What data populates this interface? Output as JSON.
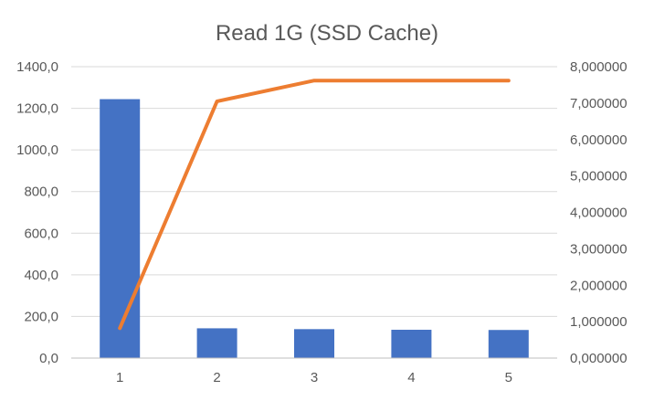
{
  "chart_data": {
    "type": "bar+line",
    "title": "Read 1G (SSD Cache)",
    "categories": [
      "1",
      "2",
      "3",
      "4",
      "5"
    ],
    "grid": true,
    "legend": "none",
    "y_left": {
      "lim": [
        0,
        1400
      ],
      "ticks": [
        "0,0",
        "200,0",
        "400,0",
        "600,0",
        "800,0",
        "1000,0",
        "1200,0",
        "1400,0"
      ]
    },
    "y_right": {
      "lim": [
        0,
        8
      ],
      "ticks": [
        "0,000000",
        "1,000000",
        "2,000000",
        "3,000000",
        "4,000000",
        "5,000000",
        "6,000000",
        "7,000000",
        "8,000000"
      ]
    },
    "series": [
      {
        "kind": "bar",
        "axis": "left",
        "color": "#4472c4",
        "values": [
          1244,
          143,
          139,
          136,
          135
        ]
      },
      {
        "kind": "line",
        "axis": "right",
        "color": "#ed7d31",
        "values": [
          0.82,
          7.05,
          7.62,
          7.62,
          7.62
        ]
      }
    ]
  }
}
